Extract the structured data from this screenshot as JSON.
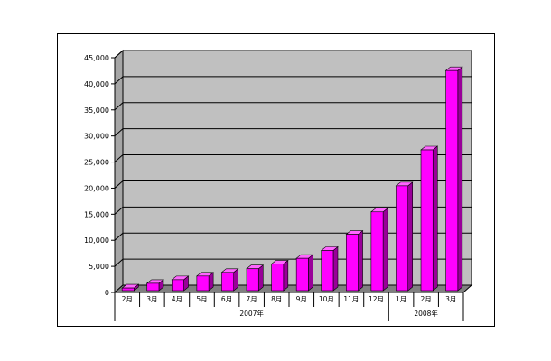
{
  "chart_data": {
    "type": "bar",
    "categories": [
      "2月",
      "3月",
      "4月",
      "5月",
      "6月",
      "7月",
      "8月",
      "9月",
      "10月",
      "11月",
      "12月",
      "1月",
      "2月",
      "3月"
    ],
    "groups": [
      {
        "label": "2007年",
        "count": 11
      },
      {
        "label": "2008年",
        "count": 3
      }
    ],
    "values": [
      500,
      1400,
      2100,
      2800,
      3500,
      4200,
      5100,
      6200,
      7700,
      10800,
      15100,
      20100,
      27000,
      42200
    ],
    "ylim": [
      0,
      45000
    ],
    "yticks": [
      "0",
      "5,000",
      "10,000",
      "15,000",
      "20,000",
      "25,000",
      "30,000",
      "35,000",
      "40,000",
      "45,000"
    ],
    "ytick_values": [
      0,
      5000,
      10000,
      15000,
      20000,
      25000,
      30000,
      35000,
      40000,
      45000
    ],
    "grid": true,
    "colors": {
      "bar_front": "#ff00ff",
      "bar_side": "#990099",
      "bar_top": "#ff66ff",
      "plot_wall": "#c0c0c0",
      "floor": "#808080"
    }
  }
}
